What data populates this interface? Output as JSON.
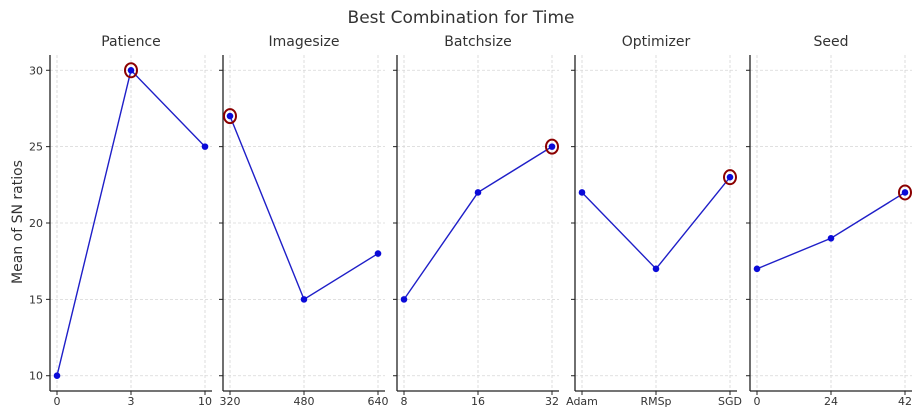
{
  "chart_data": {
    "type": "line",
    "title": "Best Combination for Time",
    "ylabel": "Mean of SN ratios",
    "ylim": [
      9,
      31
    ],
    "yticks": [
      10,
      15,
      20,
      25,
      30
    ],
    "grid": true,
    "line_color": "#1f1fc8",
    "highlight_color": "#8b0000",
    "panels": [
      {
        "title": "Patience",
        "categories": [
          "0",
          "3",
          "10"
        ],
        "values": [
          10,
          30,
          25
        ],
        "best_index": 1
      },
      {
        "title": "Imagesize",
        "categories": [
          "320",
          "480",
          "640"
        ],
        "values": [
          27,
          15,
          18
        ],
        "best_index": 0
      },
      {
        "title": "Batchsize",
        "categories": [
          "8",
          "16",
          "32"
        ],
        "values": [
          15,
          22,
          25
        ],
        "best_index": 2
      },
      {
        "title": "Optimizer",
        "categories": [
          "Adam",
          "RMSp",
          "SGD"
        ],
        "values": [
          22,
          17,
          23
        ],
        "best_index": 2
      },
      {
        "title": "Seed",
        "categories": [
          "0",
          "24",
          "42"
        ],
        "values": [
          17,
          19,
          22
        ],
        "best_index": 2
      }
    ]
  }
}
